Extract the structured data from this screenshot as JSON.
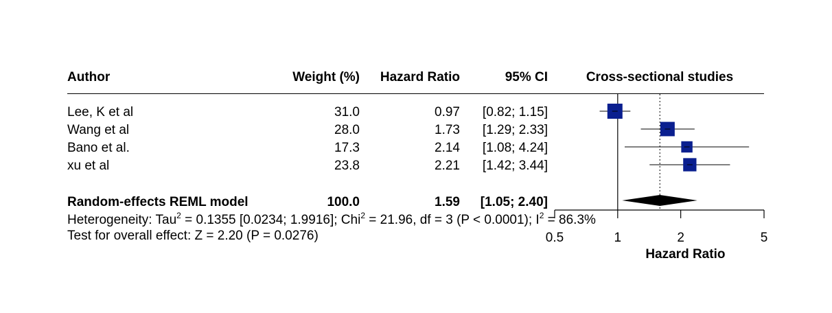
{
  "header": {
    "author": "Author",
    "weight": "Weight (%)",
    "hr": "Hazard Ratio",
    "ci": "95% CI",
    "plot_title": "Cross-sectional studies"
  },
  "studies": [
    {
      "author": "Lee, K et al",
      "weight": "31.0",
      "hr": "0.97",
      "ci": "[0.82; 1.15]"
    },
    {
      "author": "Wang et al",
      "weight": "28.0",
      "hr": "1.73",
      "ci": "[1.29; 2.33]"
    },
    {
      "author": "Bano et al.",
      "weight": "17.3",
      "hr": "2.14",
      "ci": "[1.08; 4.24]"
    },
    {
      "author": "xu et al",
      "weight": "23.8",
      "hr": "2.21",
      "ci": "[1.42; 3.44]"
    }
  ],
  "summary": {
    "label": "Random-effects REML model",
    "weight": "100.0",
    "hr": "1.59",
    "ci": "[1.05; 2.40]"
  },
  "heterogeneity": {
    "prefix": "Heterogeneity: Tau",
    "sup1": "2",
    "part2": " = 0.1355 [0.0234; 1.9916]; Chi",
    "sup2": "2",
    "part3": " = 21.96, df = 3 (P < 0.0001); I",
    "sup3": "2",
    "part4": " = 86.3%"
  },
  "overall_effect": "Test for overall effect: Z = 2.20 (P = 0.0276)",
  "colors": {
    "box": "#0a1f8f",
    "line": "#000000",
    "diamond": "#000000"
  },
  "chart_data": {
    "type": "forest",
    "title": "Cross-sectional studies",
    "xlabel": "Hazard Ratio",
    "x_scale": "log",
    "xlim": [
      0.5,
      5
    ],
    "xticks": [
      0.5,
      1,
      2,
      5
    ],
    "xtick_labels": [
      "0.5",
      "1",
      "2",
      "5"
    ],
    "null_line": 1,
    "pooled_line": 1.59,
    "studies": [
      {
        "name": "Lee, K et al",
        "hr": 0.97,
        "lower": 0.82,
        "upper": 1.15,
        "weight": 31.0
      },
      {
        "name": "Wang et al",
        "hr": 1.73,
        "lower": 1.29,
        "upper": 2.33,
        "weight": 28.0
      },
      {
        "name": "Bano et al.",
        "hr": 2.14,
        "lower": 1.08,
        "upper": 4.24,
        "weight": 17.3
      },
      {
        "name": "xu et al",
        "hr": 2.21,
        "lower": 1.42,
        "upper": 3.44,
        "weight": 23.8
      }
    ],
    "pooled": {
      "name": "Random-effects REML model",
      "hr": 1.59,
      "lower": 1.05,
      "upper": 2.4,
      "weight": 100.0
    }
  }
}
